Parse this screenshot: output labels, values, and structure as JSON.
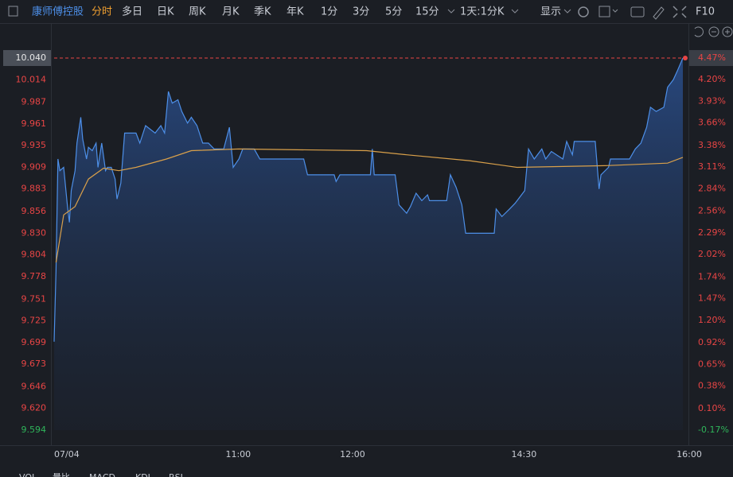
{
  "toolbar": {
    "stock_name": "康师傅控股",
    "tabs": [
      "分时",
      "多日",
      "日K",
      "周K",
      "月K",
      "季K",
      "年K",
      "1分",
      "3分",
      "5分",
      "15分",
      "1天:1分K"
    ],
    "active_tab": 0,
    "display": "显示",
    "f10": "F10"
  },
  "chart_data": {
    "type": "line",
    "xlim": [
      0,
      330
    ],
    "xticks": [
      {
        "value": 0,
        "label": "07/04"
      },
      {
        "value": 90,
        "label": "11:00"
      },
      {
        "value": 150,
        "label": "12:00"
      },
      {
        "value": 240,
        "label": "14:30"
      },
      {
        "value": 330,
        "label": "16:00"
      }
    ],
    "ylim": [
      9.594,
      10.04
    ],
    "yticks": [
      {
        "value": 10.04,
        "label": "10.040"
      },
      10.014,
      9.987,
      9.961,
      9.935,
      9.909,
      9.883,
      9.856,
      {
        "value": 9.83,
        "label": "9.830"
      },
      9.804,
      9.778,
      9.751,
      9.725,
      9.699,
      9.673,
      9.646,
      {
        "value": 9.62,
        "label": "9.620"
      },
      9.594
    ],
    "y2lim": [
      -0.17,
      4.47
    ],
    "y2ticks": [
      {
        "value": 4.47,
        "label": "4.47%"
      },
      {
        "value": 4.2,
        "label": "4.20%"
      },
      {
        "value": 3.93,
        "label": "3.93%"
      },
      {
        "value": 3.66,
        "label": "3.66%"
      },
      {
        "value": 3.38,
        "label": "3.38%"
      },
      {
        "value": 3.11,
        "label": "3.11%"
      },
      {
        "value": 2.84,
        "label": "2.84%"
      },
      {
        "value": 2.56,
        "label": "2.56%"
      },
      {
        "value": 2.29,
        "label": "2.29%"
      },
      {
        "value": 2.02,
        "label": "2.02%"
      },
      {
        "value": 1.74,
        "label": "1.74%"
      },
      {
        "value": 1.47,
        "label": "1.47%"
      },
      {
        "value": 1.2,
        "label": "1.20%"
      },
      {
        "value": 0.92,
        "label": "0.92%"
      },
      {
        "value": 0.65,
        "label": "0.65%"
      },
      {
        "value": 0.38,
        "label": "0.38%"
      },
      {
        "value": 0.1,
        "label": "0.10%"
      },
      {
        "value": -0.17,
        "label": "-0.17%"
      }
    ],
    "up_color": "#e84545",
    "down_color": "#2fb55a",
    "series": [
      {
        "color": "#4d8fe8",
        "area": true,
        "x": [
          0,
          1,
          2,
          3,
          5,
          7,
          8,
          9,
          11,
          12,
          14,
          15,
          17,
          18,
          20,
          22,
          23,
          25,
          27,
          28,
          30,
          32,
          33,
          35,
          37,
          43,
          45,
          48,
          53,
          56,
          58,
          60,
          62,
          65,
          67,
          70,
          72,
          75,
          78,
          81,
          84,
          89,
          92,
          94,
          97,
          99,
          105,
          108,
          131,
          133,
          147,
          148,
          150,
          166,
          167,
          168,
          179,
          181,
          185,
          187,
          190,
          193,
          196,
          197,
          206,
          208,
          211,
          214,
          216,
          231,
          232,
          235,
          239,
          242,
          247,
          249,
          252,
          256,
          258,
          261,
          267,
          269,
          272,
          273,
          284,
          286,
          287,
          291,
          292,
          302,
          305,
          308,
          311,
          313,
          316,
          320,
          322,
          325,
          327,
          330
        ],
        "values": [
          9.7,
          9.786,
          9.919,
          9.905,
          9.909,
          9.862,
          9.843,
          9.881,
          9.905,
          9.938,
          9.969,
          9.943,
          9.919,
          9.933,
          9.929,
          9.938,
          9.909,
          9.938,
          9.905,
          9.909,
          9.909,
          9.895,
          9.871,
          9.89,
          9.95,
          9.95,
          9.938,
          9.959,
          9.95,
          9.959,
          9.95,
          10.0,
          9.986,
          9.99,
          9.976,
          9.962,
          9.969,
          9.959,
          9.938,
          9.938,
          9.931,
          9.931,
          9.957,
          9.909,
          9.919,
          9.931,
          9.931,
          9.919,
          9.919,
          9.9,
          9.9,
          9.892,
          9.9,
          9.9,
          9.931,
          9.9,
          9.9,
          9.864,
          9.854,
          9.862,
          9.878,
          9.869,
          9.876,
          9.869,
          9.869,
          9.9,
          9.885,
          9.864,
          9.83,
          9.83,
          9.859,
          9.85,
          9.859,
          9.866,
          9.881,
          9.931,
          9.919,
          9.931,
          9.919,
          9.928,
          9.919,
          9.94,
          9.924,
          9.94,
          9.94,
          9.883,
          9.9,
          9.909,
          9.919,
          9.919,
          9.931,
          9.938,
          9.957,
          9.981,
          9.976,
          9.981,
          10.005,
          10.014,
          10.024,
          10.04
        ]
      },
      {
        "color": "#d9a04a",
        "area": false,
        "x": [
          1,
          5,
          11,
          18,
          26,
          34,
          43,
          59,
          72,
          97,
          164,
          185,
          218,
          243,
          289,
          322,
          330
        ],
        "values": [
          9.795,
          9.852,
          9.862,
          9.895,
          9.908,
          9.905,
          9.909,
          9.919,
          9.929,
          9.931,
          9.929,
          9.924,
          9.917,
          9.909,
          9.911,
          9.914,
          9.921
        ]
      }
    ]
  },
  "indicator_tabs": [
    "VOL",
    "量比",
    "MACD",
    "KDJ",
    "RSI"
  ]
}
